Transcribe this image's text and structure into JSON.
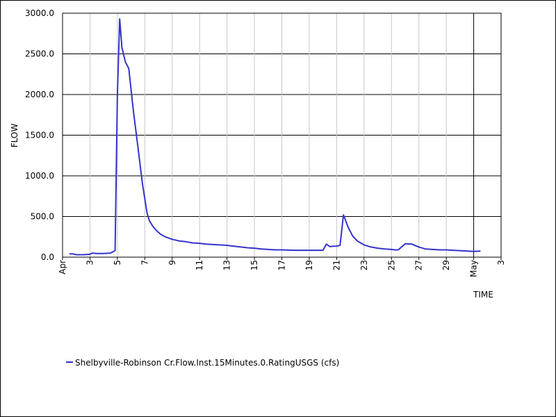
{
  "chart_data": {
    "type": "line",
    "xlabel": "TIME",
    "ylabel": "FLOW",
    "ylim": [
      0,
      3000
    ],
    "xlim": [
      "2025-04-01",
      "2025-05-03"
    ],
    "grid": true,
    "legend_position": "bottom-left",
    "y_ticks": [
      "0.0",
      "500.0",
      "1000.0",
      "1500.0",
      "2000.0",
      "2500.0",
      "3000.0"
    ],
    "x_ticks": [
      {
        "label": "Apr",
        "date": "2025-04-01",
        "major": true
      },
      {
        "label": "3",
        "date": "2025-04-03"
      },
      {
        "label": "5",
        "date": "2025-04-05"
      },
      {
        "label": "7",
        "date": "2025-04-07"
      },
      {
        "label": "9",
        "date": "2025-04-09"
      },
      {
        "label": "11",
        "date": "2025-04-11"
      },
      {
        "label": "13",
        "date": "2025-04-13"
      },
      {
        "label": "15",
        "date": "2025-04-15"
      },
      {
        "label": "17",
        "date": "2025-04-17"
      },
      {
        "label": "19",
        "date": "2025-04-19"
      },
      {
        "label": "21",
        "date": "2025-04-21"
      },
      {
        "label": "23",
        "date": "2025-04-23"
      },
      {
        "label": "25",
        "date": "2025-04-25"
      },
      {
        "label": "27",
        "date": "2025-04-27"
      },
      {
        "label": "29",
        "date": "2025-04-29"
      },
      {
        "label": "May",
        "date": "2025-05-01",
        "major": true
      },
      {
        "label": "3",
        "date": "2025-05-03"
      }
    ],
    "series": [
      {
        "name": "Shelbyville-Robinson Cr.Flow.Inst.15Minutes.0.RatingUSGS (cfs)",
        "color": "#3333cc",
        "x": [
          "2025-04-01T12:00",
          "2025-04-01T18:00",
          "2025-04-02T00:00",
          "2025-04-02T12:00",
          "2025-04-03T00:00",
          "2025-04-03T04:00",
          "2025-04-03T12:00",
          "2025-04-04T00:00",
          "2025-04-04T12:00",
          "2025-04-04T20:00",
          "2025-04-05T00:00",
          "2025-04-05T04:00",
          "2025-04-05T08:00",
          "2025-04-05T14:00",
          "2025-04-05T20:00",
          "2025-04-06T04:00",
          "2025-04-06T12:00",
          "2025-04-06T20:00",
          "2025-04-07T04:00",
          "2025-04-07T08:00",
          "2025-04-07T14:00",
          "2025-04-07T20:00",
          "2025-04-08T04:00",
          "2025-04-08T12:00",
          "2025-04-09T00:00",
          "2025-04-09T12:00",
          "2025-04-10T00:00",
          "2025-04-10T12:00",
          "2025-04-11T00:00",
          "2025-04-11T12:00",
          "2025-04-12T00:00",
          "2025-04-12T12:00",
          "2025-04-13T00:00",
          "2025-04-13T12:00",
          "2025-04-14T00:00",
          "2025-04-14T12:00",
          "2025-04-15T00:00",
          "2025-04-15T12:00",
          "2025-04-16T00:00",
          "2025-04-16T12:00",
          "2025-04-17T00:00",
          "2025-04-18T00:00",
          "2025-04-19T00:00",
          "2025-04-19T12:00",
          "2025-04-20T00:00",
          "2025-04-20T06:00",
          "2025-04-20T12:00",
          "2025-04-20T20:00",
          "2025-04-21T00:00",
          "2025-04-21T06:00",
          "2025-04-21T12:00",
          "2025-04-21T20:00",
          "2025-04-22T04:00",
          "2025-04-22T12:00",
          "2025-04-23T00:00",
          "2025-04-23T12:00",
          "2025-04-24T00:00",
          "2025-04-24T12:00",
          "2025-04-25T00:00",
          "2025-04-25T06:00",
          "2025-04-25T12:00",
          "2025-04-26T00:00",
          "2025-04-26T12:00",
          "2025-04-27T00:00",
          "2025-04-27T12:00",
          "2025-04-28T00:00",
          "2025-04-28T12:00",
          "2025-04-29T00:00",
          "2025-04-29T12:00",
          "2025-04-30T00:00",
          "2025-04-30T12:00",
          "2025-05-01T00:00",
          "2025-05-01T12:00"
        ],
        "y": [
          40,
          40,
          30,
          30,
          35,
          50,
          45,
          45,
          50,
          80,
          2000,
          2930,
          2580,
          2400,
          2320,
          1800,
          1350,
          900,
          540,
          450,
          380,
          330,
          280,
          250,
          220,
          200,
          190,
          175,
          170,
          160,
          155,
          150,
          145,
          135,
          125,
          115,
          110,
          100,
          95,
          90,
          90,
          85,
          85,
          85,
          85,
          160,
          130,
          135,
          135,
          145,
          520,
          370,
          260,
          200,
          150,
          125,
          110,
          100,
          95,
          90,
          90,
          165,
          160,
          125,
          100,
          95,
          90,
          90,
          85,
          80,
          75,
          70,
          75
        ]
      }
    ]
  }
}
